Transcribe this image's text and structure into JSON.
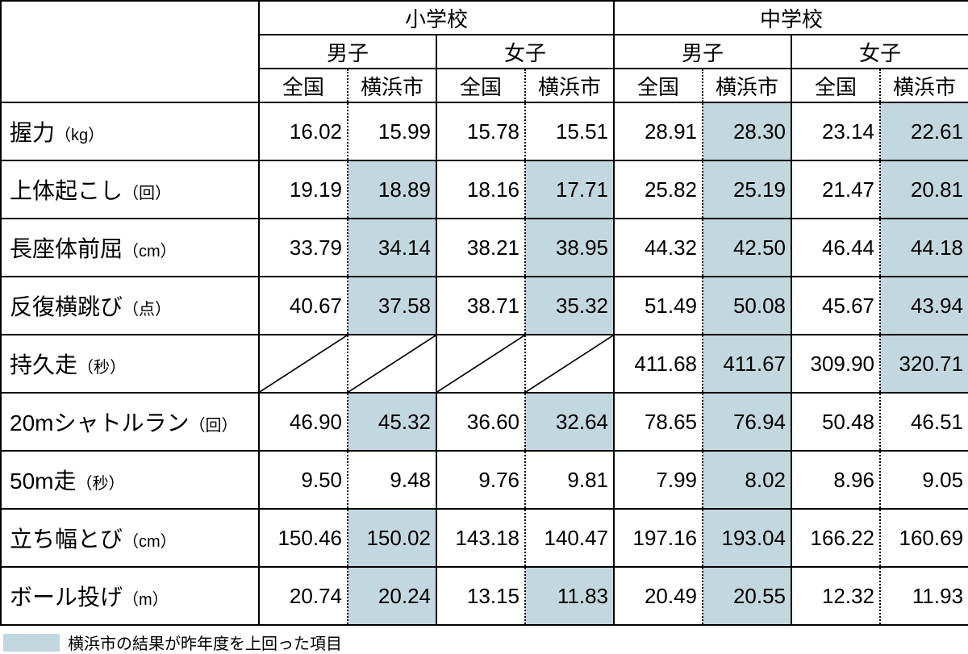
{
  "colors": {
    "highlight": "#c3d8de",
    "border": "#000000",
    "background": "#ffffff",
    "text": "#000000"
  },
  "header": {
    "group1": "小学校",
    "group2": "中学校",
    "sub1": "男子",
    "sub2": "女子",
    "col_national": "全国",
    "col_city": "横浜市"
  },
  "rows": [
    {
      "label": "握力",
      "unit": "（kg）",
      "v": [
        "16.02",
        "15.99",
        "15.78",
        "15.51",
        "28.91",
        "28.30",
        "23.14",
        "22.61"
      ],
      "hl": [
        false,
        false,
        false,
        false,
        false,
        true,
        false,
        true
      ]
    },
    {
      "label": "上体起こし",
      "unit": "（回）",
      "v": [
        "19.19",
        "18.89",
        "18.16",
        "17.71",
        "25.82",
        "25.19",
        "21.47",
        "20.81"
      ],
      "hl": [
        false,
        true,
        false,
        true,
        false,
        true,
        false,
        true
      ]
    },
    {
      "label": "長座体前屈",
      "unit": "（cm）",
      "v": [
        "33.79",
        "34.14",
        "38.21",
        "38.95",
        "44.32",
        "42.50",
        "46.44",
        "44.18"
      ],
      "hl": [
        false,
        true,
        false,
        true,
        false,
        true,
        false,
        true
      ]
    },
    {
      "label": "反復横跳び",
      "unit": "（点）",
      "v": [
        "40.67",
        "37.58",
        "38.71",
        "35.32",
        "51.49",
        "50.08",
        "45.67",
        "43.94"
      ],
      "hl": [
        false,
        true,
        false,
        true,
        false,
        true,
        false,
        true
      ]
    },
    {
      "label": "持久走",
      "unit": "（秒）",
      "v": [
        "",
        "",
        "",
        "",
        "411.68",
        "411.67",
        "309.90",
        "320.71"
      ],
      "hl": [
        false,
        false,
        false,
        false,
        false,
        true,
        false,
        true
      ],
      "diag": [
        true,
        true,
        true,
        true,
        false,
        false,
        false,
        false
      ]
    },
    {
      "label": "20mシャトルラン",
      "unit": "（回）",
      "v": [
        "46.90",
        "45.32",
        "36.60",
        "32.64",
        "78.65",
        "76.94",
        "50.48",
        "46.51"
      ],
      "hl": [
        false,
        true,
        false,
        true,
        false,
        true,
        false,
        false
      ]
    },
    {
      "label": "50m走",
      "unit": "（秒）",
      "v": [
        "9.50",
        "9.48",
        "9.76",
        "9.81",
        "7.99",
        "8.02",
        "8.96",
        "9.05"
      ],
      "hl": [
        false,
        false,
        false,
        false,
        false,
        true,
        false,
        false
      ]
    },
    {
      "label": "立ち幅とび",
      "unit": "（cm）",
      "v": [
        "150.46",
        "150.02",
        "143.18",
        "140.47",
        "197.16",
        "193.04",
        "166.22",
        "160.69"
      ],
      "hl": [
        false,
        true,
        false,
        false,
        false,
        true,
        false,
        false
      ]
    },
    {
      "label": "ボール投げ",
      "unit": "（m）",
      "v": [
        "20.74",
        "20.24",
        "13.15",
        "11.83",
        "20.49",
        "20.55",
        "12.32",
        "11.93"
      ],
      "hl": [
        false,
        true,
        false,
        true,
        false,
        true,
        false,
        false
      ]
    }
  ],
  "legend": "横浜市の結果が昨年度を上回った項目"
}
